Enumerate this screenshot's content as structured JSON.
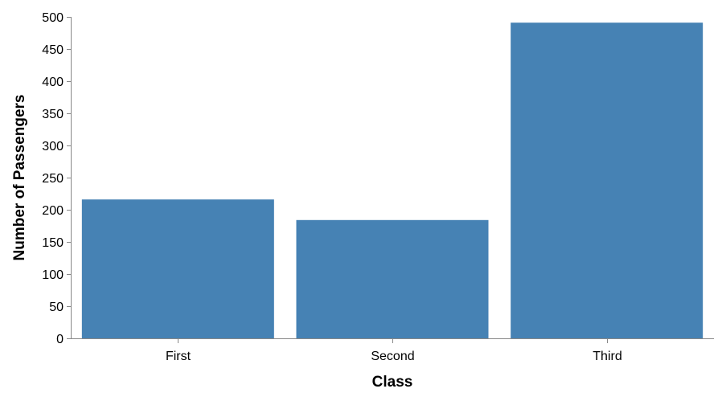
{
  "chart_data": {
    "type": "bar",
    "title": "",
    "xlabel": "Class",
    "ylabel": "Number of Passengers",
    "categories": [
      "First",
      "Second",
      "Third"
    ],
    "values": [
      216,
      184,
      491
    ],
    "ylim": [
      0,
      500
    ],
    "yticks": [
      0,
      50,
      100,
      150,
      200,
      250,
      300,
      350,
      400,
      450,
      500
    ],
    "grid": false,
    "legend": "none",
    "bar_color": "#4682b4"
  }
}
